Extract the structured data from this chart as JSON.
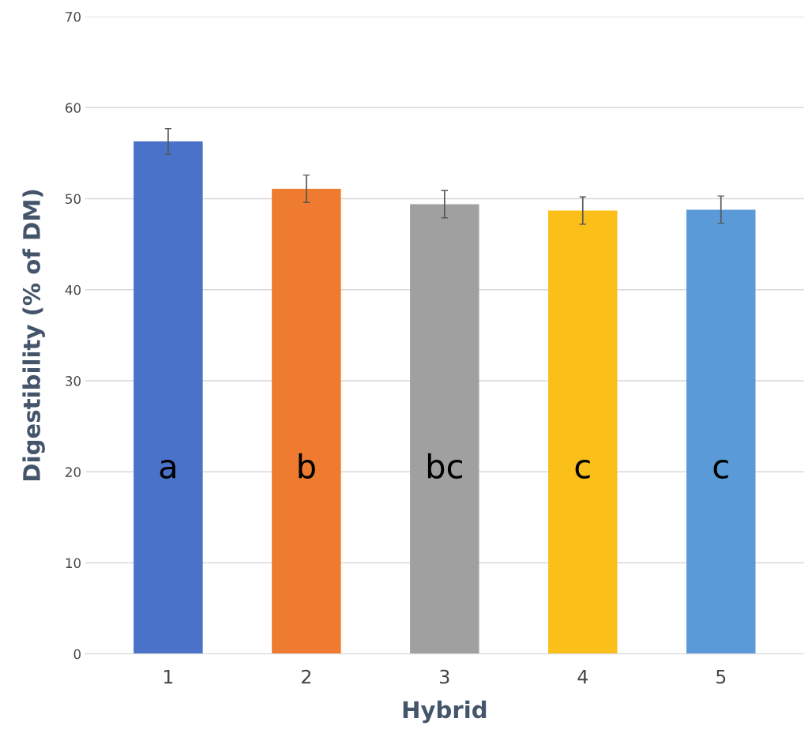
{
  "chart_data": {
    "type": "bar",
    "xlabel": "Hybrid",
    "ylabel": "Digestibility (% of DM)",
    "categories": [
      "1",
      "2",
      "3",
      "4",
      "5"
    ],
    "values": [
      56.3,
      51.1,
      49.4,
      48.7,
      48.8
    ],
    "errors": [
      1.4,
      1.5,
      1.5,
      1.5,
      1.5
    ],
    "colors": [
      "#4a72c8",
      "#ee7b30",
      "#a0a0a0",
      "#fbbf1a",
      "#5b9ad8"
    ],
    "ylim": [
      0,
      70
    ],
    "yticks": [
      0,
      10,
      20,
      30,
      40,
      50,
      60,
      70
    ],
    "grid": "y",
    "annotations": [
      "a",
      "b",
      "bc",
      "c",
      "c"
    ]
  }
}
